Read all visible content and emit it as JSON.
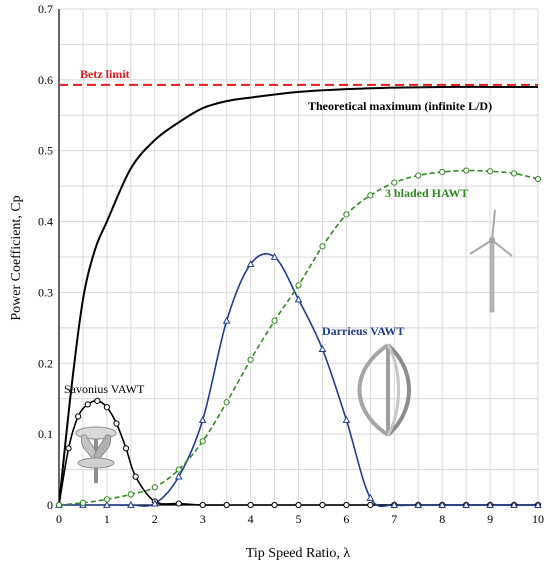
{
  "chart_data": {
    "type": "line",
    "xlabel": "Tip Speed Ratio, λ",
    "ylabel": "Power Coefficient, Cp",
    "xlim": [
      0,
      10
    ],
    "ylim": [
      0,
      0.7
    ],
    "xticks": [
      "0",
      "1",
      "2",
      "3",
      "4",
      "5",
      "6",
      "7",
      "8",
      "9",
      "10"
    ],
    "yticks": [
      "0",
      "0.1",
      "0.2",
      "0.3",
      "0.4",
      "0.5",
      "0.6",
      "0.7"
    ],
    "grid": true,
    "reference_lines": [
      {
        "label": "Betz limit",
        "y": 0.593,
        "color": "#e8191d",
        "dash": true
      }
    ],
    "series": [
      {
        "name": "Theoretical maximum (infinite L/D)",
        "color": "#000000",
        "marker": "none",
        "dash": false,
        "x": [
          0,
          0.25,
          0.5,
          0.75,
          1.0,
          1.5,
          2.0,
          2.5,
          3.0,
          3.5,
          4.0,
          5.0,
          6.0,
          7.0,
          8.0,
          9.0,
          10.0
        ],
        "y": [
          0,
          0.16,
          0.29,
          0.36,
          0.4,
          0.475,
          0.515,
          0.54,
          0.56,
          0.57,
          0.575,
          0.583,
          0.587,
          0.589,
          0.59,
          0.59,
          0.59
        ]
      },
      {
        "name": "Savonius VAWT",
        "color": "#000000",
        "marker": "circle",
        "dash": false,
        "x": [
          0,
          0.2,
          0.4,
          0.6,
          0.8,
          1.0,
          1.2,
          1.4,
          1.6,
          2.0,
          2.5,
          3.0,
          3.5,
          4.0,
          4.5,
          5.0,
          5.5,
          6.0,
          6.5,
          7.0,
          7.5,
          8.0,
          8.5,
          9.0,
          9.5,
          10.0
        ],
        "y": [
          0,
          0.08,
          0.125,
          0.142,
          0.147,
          0.138,
          0.115,
          0.08,
          0.04,
          0.005,
          0.002,
          0.0,
          0,
          0,
          0,
          0,
          0,
          0,
          0,
          0,
          0,
          0,
          0,
          0,
          0,
          0
        ]
      },
      {
        "name": "Darrieus VAWT",
        "color": "#1f3c8f",
        "marker": "triangle",
        "dash": false,
        "x": [
          0,
          0.5,
          1.0,
          1.5,
          2.0,
          2.5,
          3.0,
          3.5,
          4.0,
          4.5,
          5.0,
          5.5,
          6.0,
          6.5,
          7.0,
          7.5,
          8.0,
          8.5,
          9.0,
          9.5,
          10.0
        ],
        "y": [
          0,
          0,
          0,
          0,
          0.002,
          0.04,
          0.12,
          0.26,
          0.34,
          0.35,
          0.29,
          0.22,
          0.12,
          0.01,
          0,
          0,
          0,
          0,
          0,
          0,
          0
        ]
      },
      {
        "name": "3 bladed HAWT",
        "color": "#2e8b1f",
        "marker": "circle",
        "dash": true,
        "x": [
          0,
          0.5,
          1.0,
          1.5,
          2.0,
          2.5,
          3.0,
          3.5,
          4.0,
          4.5,
          5.0,
          5.5,
          6.0,
          6.5,
          7.0,
          7.5,
          8.0,
          8.5,
          9.0,
          9.5,
          10.0
        ],
        "y": [
          0,
          0.003,
          0.008,
          0.015,
          0.025,
          0.05,
          0.09,
          0.145,
          0.205,
          0.26,
          0.31,
          0.365,
          0.41,
          0.437,
          0.455,
          0.465,
          0.47,
          0.472,
          0.471,
          0.468,
          0.46
        ]
      }
    ],
    "annotations": {
      "betz": "Betz limit",
      "theoretical": "Theoretical maximum (infinite L/D)",
      "hawt": "3 bladed HAWT",
      "darrieus": "Darrieus VAWT",
      "savonius": "Savonius VAWT"
    },
    "colors": {
      "betz": "#e8191d",
      "theoretical": "#000000",
      "hawt": "#2e8b1f",
      "darrieus": "#1f3c8f",
      "savonius": "#000000",
      "grid": "#d8d8d8",
      "axis": "#000000"
    },
    "icons": {
      "hawt": "hawt-turbine-icon",
      "darrieus": "darrieus-turbine-icon",
      "savonius": "savonius-turbine-icon"
    }
  }
}
